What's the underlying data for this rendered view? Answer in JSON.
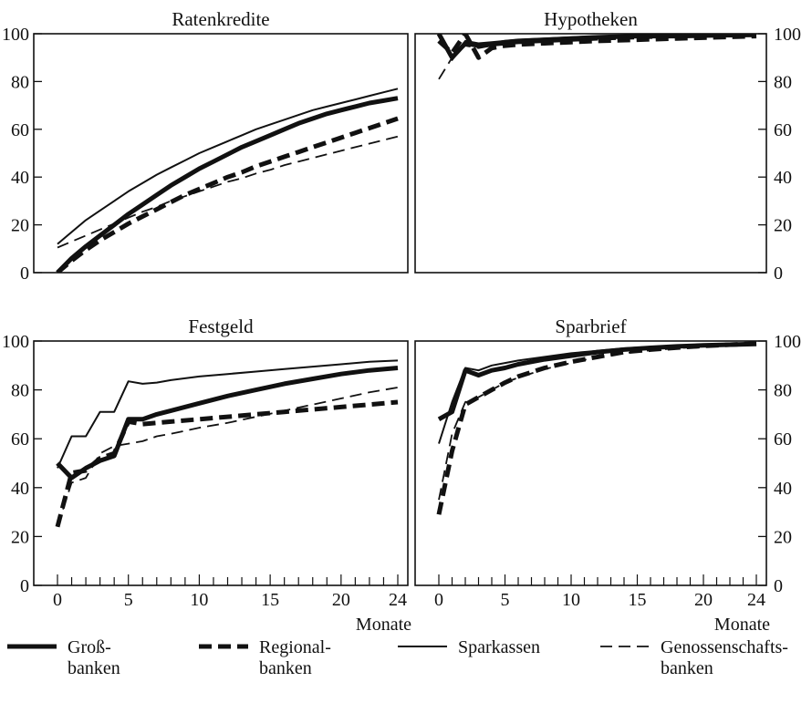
{
  "chart_data": [
    {
      "type": "line",
      "title": "Ratenkredite",
      "xlim": [
        0,
        24
      ],
      "ylim": [
        0,
        100
      ],
      "yticks": [
        "0",
        "20",
        "40",
        "60",
        "80",
        "100"
      ],
      "xticks": [],
      "xlabel": "",
      "series": [
        {
          "name": "Groß- banken",
          "x": [
            0,
            1,
            2,
            3,
            4,
            5,
            6,
            7,
            8,
            9,
            10,
            11,
            12,
            13,
            14,
            15,
            16,
            17,
            18,
            19,
            20,
            21,
            22,
            23,
            24
          ],
          "values": [
            0,
            6,
            11,
            15.5,
            20,
            24.5,
            28.5,
            32.5,
            36.5,
            40,
            43.5,
            46.5,
            49.5,
            52.5,
            55,
            57.5,
            60,
            62.5,
            64.5,
            66.5,
            68,
            69.5,
            71,
            72,
            73
          ]
        },
        {
          "name": "Regional- banken",
          "x": [
            0,
            1,
            2,
            3,
            4,
            5,
            6,
            7,
            8,
            9,
            10,
            11,
            12,
            13,
            14,
            15,
            16,
            17,
            18,
            19,
            20,
            21,
            22,
            23,
            24
          ],
          "values": [
            0,
            5,
            9.5,
            13.5,
            17,
            20.5,
            23.5,
            26.5,
            29.5,
            32.5,
            35,
            37.5,
            40,
            42,
            44.5,
            46.5,
            48.5,
            50.5,
            52.5,
            54.5,
            56.5,
            58.5,
            60.5,
            62.5,
            64.5
          ]
        },
        {
          "name": "Sparkassen",
          "x": [
            0,
            1,
            2,
            3,
            4,
            5,
            6,
            7,
            8,
            9,
            10,
            11,
            12,
            13,
            14,
            15,
            16,
            17,
            18,
            19,
            20,
            21,
            22,
            23,
            24
          ],
          "values": [
            12,
            17,
            22,
            26,
            30,
            34,
            37.5,
            41,
            44,
            47,
            50,
            52.5,
            55,
            57.5,
            60,
            62,
            64,
            66,
            68,
            69.5,
            71,
            72.5,
            74,
            75.5,
            77
          ]
        },
        {
          "name": "Genossenschafts- banken",
          "x": [
            0,
            1,
            2,
            3,
            4,
            5,
            6,
            7,
            8,
            9,
            10,
            11,
            12,
            13,
            14,
            15,
            16,
            17,
            18,
            19,
            20,
            21,
            22,
            23,
            24
          ],
          "values": [
            10.5,
            13,
            15.5,
            18,
            20.5,
            23,
            25.5,
            27.5,
            30,
            32,
            34,
            36,
            38,
            39.5,
            41.5,
            43,
            45,
            46.5,
            48,
            49.5,
            51,
            52.5,
            54,
            55.5,
            57
          ]
        }
      ]
    },
    {
      "type": "line",
      "title": "Hypotheken",
      "xlim": [
        0,
        24
      ],
      "ylim": [
        0,
        100
      ],
      "yticks": [
        "0",
        "20",
        "40",
        "60",
        "80",
        "100"
      ],
      "xticks": [],
      "xlabel": "",
      "series": [
        {
          "name": "Groß- banken",
          "x": [
            0,
            1,
            2,
            3,
            4,
            5,
            6,
            8,
            10,
            12,
            15,
            18,
            21,
            24
          ],
          "values": [
            100,
            90,
            96,
            95,
            95.5,
            96.5,
            97,
            97.5,
            98,
            98.5,
            99,
            99,
            99.3,
            99.5
          ]
        },
        {
          "name": "Regional- banken",
          "x": [
            0,
            1,
            2,
            3,
            4,
            5,
            6,
            8,
            10,
            12,
            15,
            18,
            21,
            24
          ],
          "values": [
            97,
            92,
            100,
            90,
            94,
            95,
            95.5,
            96,
            96.5,
            97,
            97.5,
            98,
            98.5,
            99
          ]
        },
        {
          "name": "Sparkassen",
          "x": [
            0,
            1,
            2,
            3,
            4,
            5,
            6,
            8,
            10,
            12,
            15,
            18,
            21,
            24
          ],
          "values": [
            100,
            89,
            97,
            96,
            96.5,
            97,
            97.5,
            98,
            98.5,
            99,
            99.2,
            99.4,
            99.6,
            99.8
          ]
        },
        {
          "name": "Genossenschafts- banken",
          "x": [
            0,
            1,
            2,
            3,
            4,
            5,
            6,
            8,
            10,
            12,
            15,
            18,
            21,
            24
          ],
          "values": [
            81,
            90,
            95,
            94,
            95,
            95.5,
            96,
            96.5,
            97,
            97.5,
            98,
            98.5,
            99,
            99.3
          ]
        }
      ]
    },
    {
      "type": "line",
      "title": "Festgeld",
      "xlim": [
        0,
        24
      ],
      "ylim": [
        0,
        100
      ],
      "yticks": [
        "0",
        "20",
        "40",
        "60",
        "80",
        "100"
      ],
      "xticks": [
        "0",
        "5",
        "10",
        "15",
        "20",
        "24"
      ],
      "xlabel": "Monate",
      "series": [
        {
          "name": "Groß- banken",
          "x": [
            0,
            1,
            2,
            3,
            4,
            5,
            6,
            7,
            8,
            10,
            12,
            14,
            16,
            18,
            20,
            22,
            24
          ],
          "values": [
            50,
            44,
            48,
            51,
            53,
            68,
            68,
            70,
            71.5,
            74.5,
            77.5,
            80,
            82.5,
            84.5,
            86.5,
            88,
            89
          ]
        },
        {
          "name": "Regional- banken",
          "x": [
            0,
            1,
            2,
            3,
            4,
            5,
            6,
            7,
            8,
            10,
            12,
            14,
            16,
            18,
            20,
            22,
            24
          ],
          "values": [
            24,
            46,
            47,
            52,
            54,
            67,
            66,
            66.5,
            67,
            68,
            69,
            70,
            71,
            72,
            73,
            74,
            75
          ]
        },
        {
          "name": "Sparkassen",
          "x": [
            0,
            1,
            2,
            3,
            4,
            5,
            6,
            7,
            8,
            10,
            12,
            14,
            16,
            18,
            20,
            22,
            24
          ],
          "values": [
            48,
            61,
            61,
            71,
            71,
            83.5,
            82.5,
            83,
            84,
            85.5,
            86.5,
            87.5,
            88.5,
            89.5,
            90.5,
            91.5,
            92
          ]
        },
        {
          "name": "Genossenschafts- banken",
          "x": [
            0,
            1,
            2,
            3,
            4,
            5,
            6,
            7,
            8,
            10,
            12,
            14,
            16,
            18,
            20,
            22,
            24
          ],
          "values": [
            24,
            42,
            44,
            54,
            57,
            58,
            59,
            61,
            62,
            64.5,
            66.5,
            69,
            71.5,
            74,
            76.5,
            79,
            81
          ]
        }
      ]
    },
    {
      "type": "line",
      "title": "Sparbrief",
      "xlim": [
        0,
        24
      ],
      "ylim": [
        0,
        100
      ],
      "yticks": [
        "0",
        "20",
        "40",
        "60",
        "80",
        "100"
      ],
      "xticks": [
        "0",
        "5",
        "10",
        "15",
        "20",
        "24"
      ],
      "xlabel": "Monate",
      "series": [
        {
          "name": "Groß- banken",
          "x": [
            0,
            1,
            2,
            3,
            4,
            5,
            6,
            8,
            10,
            12,
            14,
            16,
            18,
            20,
            22,
            24
          ],
          "values": [
            68,
            71,
            88,
            86,
            88,
            89,
            90.5,
            92.5,
            94,
            95.5,
            96.5,
            97.2,
            97.8,
            98.2,
            98.5,
            98.8
          ]
        },
        {
          "name": "Regional- banken",
          "x": [
            0,
            1,
            2,
            3,
            4,
            5,
            6,
            8,
            10,
            12,
            14,
            16,
            18,
            20,
            22,
            24
          ],
          "values": [
            29,
            55,
            74,
            77,
            80,
            83,
            85.5,
            89,
            91.5,
            93.5,
            95.5,
            96.5,
            97.3,
            98,
            98.5,
            99
          ]
        },
        {
          "name": "Sparkassen",
          "x": [
            0,
            1,
            2,
            3,
            4,
            5,
            6,
            8,
            10,
            12,
            14,
            16,
            18,
            20,
            22,
            24
          ],
          "values": [
            58,
            75,
            89,
            88,
            90,
            91,
            92,
            93.5,
            95,
            96,
            97,
            97.6,
            98.2,
            98.6,
            99,
            99.2
          ]
        },
        {
          "name": "Genossenschafts- banken",
          "x": [
            0,
            1,
            2,
            3,
            4,
            5,
            6,
            8,
            10,
            12,
            14,
            16,
            18,
            20,
            22,
            24
          ],
          "values": [
            35,
            62,
            75,
            77,
            80,
            83,
            85,
            88.5,
            91,
            93.5,
            95,
            96.2,
            97,
            97.8,
            98.3,
            98.8
          ]
        }
      ]
    }
  ],
  "legend": [
    {
      "style": "thick-solid",
      "line1": "Groß-",
      "line2": "banken"
    },
    {
      "style": "thick-dashed",
      "line1": "Regional-",
      "line2": "banken"
    },
    {
      "style": "thin-solid",
      "line1": "Sparkassen",
      "line2": ""
    },
    {
      "style": "thin-dashed",
      "line1": "Genossenschafts-",
      "line2": "banken"
    }
  ],
  "colors": {
    "line": "#111111",
    "frame": "#111111"
  }
}
